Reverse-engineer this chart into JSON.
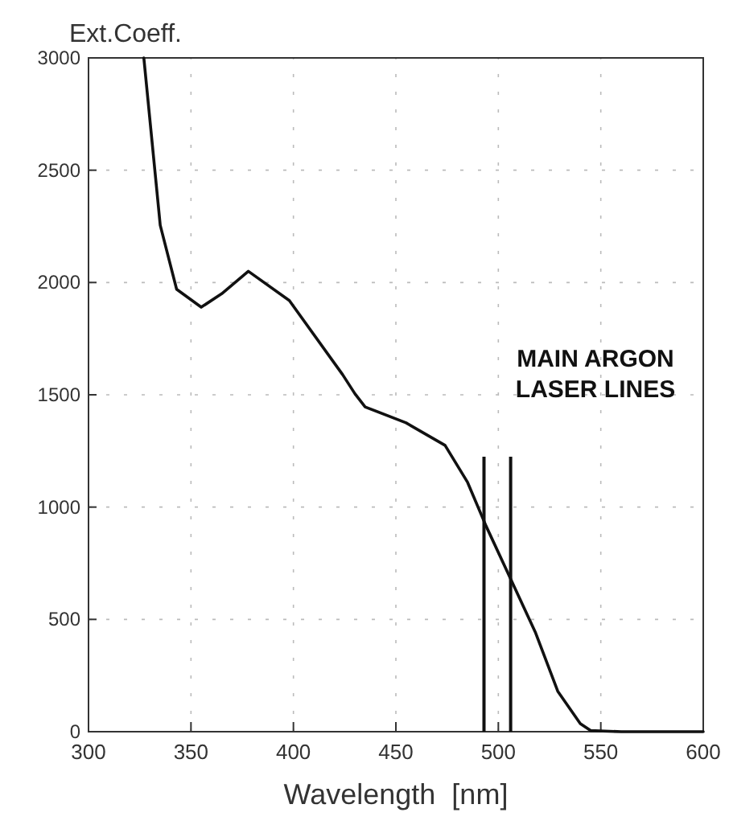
{
  "chart_data": {
    "type": "line",
    "xlabel": "Wavelength  [nm]",
    "ylabel": "Ext.Coeff.",
    "xlim": [
      300,
      600
    ],
    "ylim": [
      0,
      3000
    ],
    "xticks": [
      300,
      350,
      400,
      450,
      500,
      550,
      600
    ],
    "yticks": [
      0,
      500,
      1000,
      1500,
      2000,
      2500,
      3000
    ],
    "grid": true,
    "series": [
      {
        "color": "#111111",
        "x": [
          327,
          335,
          343,
          355,
          365,
          378,
          398,
          424,
          430,
          435,
          455,
          474,
          485,
          494,
          506,
          518,
          529,
          540,
          545,
          560,
          580,
          600
        ],
        "values": [
          3000,
          2255,
          1970,
          1890,
          1950,
          2050,
          1920,
          1590,
          1505,
          1446,
          1375,
          1275,
          1110,
          916,
          680,
          444,
          180,
          36,
          5,
          0,
          0,
          0
        ]
      }
    ],
    "ref_lines": [
      {
        "axis": "x",
        "value": 493,
        "color": "#111111"
      },
      {
        "axis": "x",
        "value": 506,
        "color": "#111111"
      }
    ],
    "annotations": [
      "MAIN ARGON LASER LINES"
    ]
  }
}
